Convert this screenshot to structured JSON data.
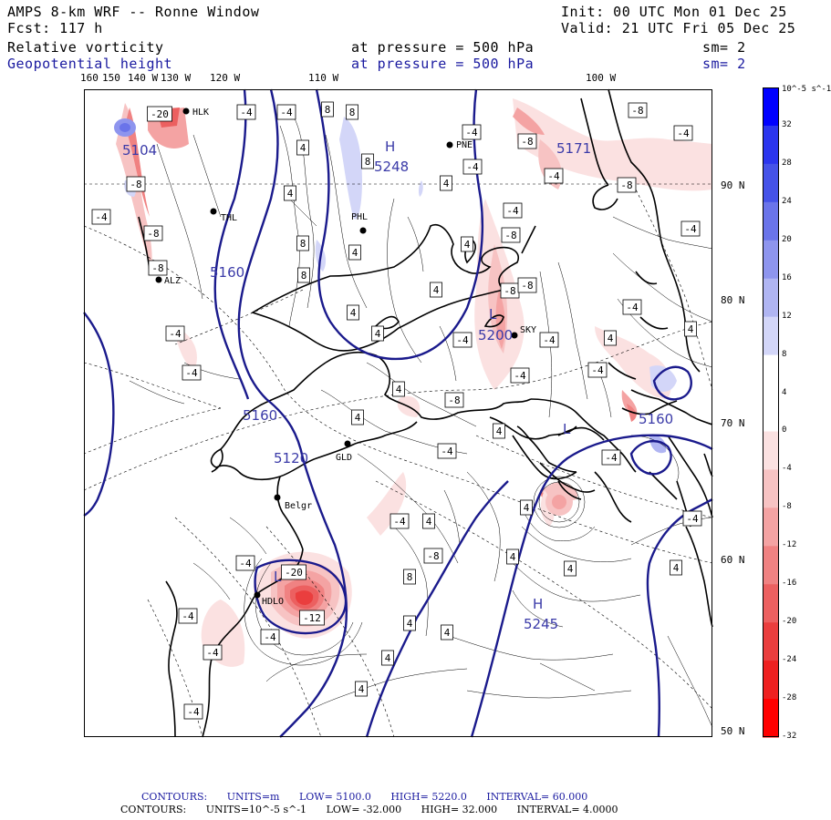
{
  "header": {
    "title": "AMPS 8-km WRF -- Ronne Window",
    "forecast": "Fcst:  117 h",
    "init": "Init: 00 UTC Mon 01 Dec 25",
    "valid": "Valid: 21 UTC Fri 05 Dec 25"
  },
  "fields": [
    {
      "name": "Relative vorticity",
      "pressure": "at pressure =  500 hPa",
      "smoothing": "sm= 2"
    },
    {
      "name": "Geopotential height",
      "pressure": "at pressure =  500 hPa",
      "smoothing": "sm= 2"
    }
  ],
  "longitude_labels": [
    "160",
    "150",
    "140 W",
    "130 W",
    "120 W",
    "110 W",
    "100 W"
  ],
  "latitude_labels": [
    "90 N",
    "80 N",
    "70 N",
    "60 N",
    "50 N"
  ],
  "colorbar": {
    "units": "10^-5 s^-1",
    "levels": [
      "32",
      "28",
      "24",
      "20",
      "16",
      "12",
      "8",
      "4",
      "0",
      "-4",
      "-8",
      "-12",
      "-16",
      "-20",
      "-24",
      "-28",
      "-32"
    ],
    "colors": [
      "#0000ff",
      "#2b35ee",
      "#4552e8",
      "#6a74ea",
      "#8e95ee",
      "#b0b5f2",
      "#d3d6f8",
      "#ffffff",
      "#ffffff",
      "#fbe1e1",
      "#f7c3c3",
      "#f4a3a3",
      "#f08282",
      "#ec6060",
      "#ea3e3e",
      "#ee2020",
      "#ff0000"
    ]
  },
  "stations": [
    "HLK",
    "PNE",
    "THL",
    "PHL",
    "ALZ",
    "SKY",
    "GLD",
    "Belgr",
    "HDLO"
  ],
  "height_labels": [
    "5104",
    "5248",
    "5160",
    "5171",
    "5200",
    "5160",
    "5160",
    "5245",
    "5120"
  ],
  "pressure_centers": [
    "H",
    "H",
    "L",
    "L",
    "L"
  ],
  "vorticity_labels": [
    "-4",
    "8",
    "-8",
    "4",
    "-12",
    "-20"
  ],
  "footer": {
    "line1": {
      "label": "CONTOURS:",
      "units": "UNITS=m",
      "low": "LOW=  5100.0",
      "high": "HIGH=  5220.0",
      "interval": "INTERVAL=  60.000"
    },
    "line2": {
      "label": "CONTOURS:",
      "units": "UNITS=10^-5 s^-1",
      "low": "LOW= -32.000",
      "high": "HIGH=  32.000",
      "interval": "INTERVAL=  4.0000"
    }
  }
}
